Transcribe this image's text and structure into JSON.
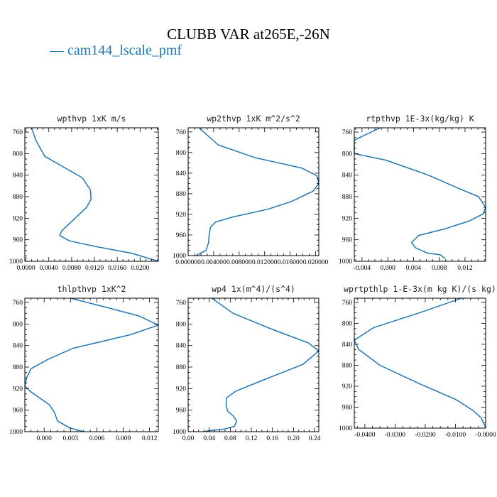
{
  "title": "CLUBB VAR at265E,-26N",
  "legend": {
    "label": "— cam144_lscale_pmf",
    "color": "#1f77b4"
  },
  "chart_data": [
    {
      "type": "line",
      "title": "wpthvp  1xK m/s",
      "xlim": [
        -0.0002,
        0.0232
      ],
      "ylim": [
        1000,
        752
      ],
      "xticks": [
        0.0,
        0.004,
        0.008,
        0.012,
        0.016,
        0.02
      ],
      "xticklabels": [
        "0.0000",
        "0.0040",
        "0.0080",
        "0.0120",
        "0.0160",
        "0.0200"
      ],
      "yticks": [
        760,
        800,
        840,
        880,
        920,
        960,
        1000
      ],
      "series": [
        {
          "color": "#1f77b4",
          "x": [
            0.001,
            0.0017,
            0.0033,
            0.0099,
            0.0113,
            0.0114,
            0.0106,
            0.0086,
            0.0063,
            0.0059,
            0.0076,
            0.0124,
            0.0185,
            0.0232
          ],
          "y": [
            752,
            775,
            805,
            845,
            868,
            885,
            900,
            920,
            943,
            952,
            962,
            973,
            985,
            1000
          ]
        }
      ]
    },
    {
      "type": "line",
      "title": "wp2thvp  1xK m^2/s^2",
      "xlim": [
        0.0,
        0.0205
      ],
      "ylim": [
        1000,
        752
      ],
      "xticks": [
        0.0,
        0.004,
        0.008,
        0.012,
        0.016,
        0.02
      ],
      "xticklabels": [
        "0.000000",
        "0.004000",
        "0.008000",
        "0.012000",
        "0.016000",
        "0.020000"
      ],
      "yticks": [
        760,
        800,
        840,
        880,
        920,
        960,
        1000
      ],
      "series": [
        {
          "color": "#1f77b4",
          "x": [
            0.0017,
            0.0047,
            0.0105,
            0.0178,
            0.0202,
            0.0205,
            0.0196,
            0.0162,
            0.0125,
            0.007,
            0.0043,
            0.0035,
            0.0033,
            0.0032,
            0.0028,
            0.0012
          ],
          "y": [
            752,
            785,
            810,
            830,
            845,
            860,
            875,
            895,
            910,
            925,
            935,
            945,
            960,
            975,
            990,
            1000
          ]
        }
      ]
    },
    {
      "type": "line",
      "title": "rtpthvp  1E-3x(kg/kg) K",
      "xlim": [
        -0.0052,
        0.0152
      ],
      "ylim": [
        1000,
        752
      ],
      "xticks": [
        -0.004,
        0.0,
        0.004,
        0.008,
        0.012
      ],
      "xticklabels": [
        "-0.004",
        "0.000",
        "0.004",
        "0.008",
        "0.012"
      ],
      "yticks": [
        760,
        800,
        840,
        880,
        920,
        960,
        1000
      ],
      "series": [
        {
          "color": "#1f77b4",
          "x": [
            -0.0012,
            -0.0052,
            -0.0052,
            -0.0003,
            0.0063,
            0.0111,
            0.0141,
            0.0152,
            0.0148,
            0.0127,
            0.0088,
            0.0048,
            0.0037,
            0.0043,
            0.0062,
            0.0082,
            0.0089
          ],
          "y": [
            752,
            775,
            800,
            812,
            840,
            865,
            880,
            900,
            912,
            925,
            940,
            952,
            965,
            975,
            985,
            988,
            995
          ]
        }
      ]
    },
    {
      "type": "line",
      "title": "thlpthvp  1xK^2",
      "xlim": [
        -0.0022,
        0.013
      ],
      "ylim": [
        1000,
        752
      ],
      "xticks": [
        0.0,
        0.003,
        0.006,
        0.009,
        0.012
      ],
      "xticklabels": [
        "0.000",
        "0.003",
        "0.006",
        "0.009",
        "0.012"
      ],
      "yticks": [
        760,
        800,
        840,
        880,
        920,
        960,
        1000
      ],
      "series": [
        {
          "color": "#1f77b4",
          "x": [
            0.003,
            0.0073,
            0.0108,
            0.013,
            0.0098,
            0.0033,
            0.0005,
            -0.0015,
            -0.002,
            -0.0022,
            -0.0016,
            0.0006,
            0.0012,
            0.0015,
            0.0029,
            0.0045
          ],
          "y": [
            752,
            770,
            785,
            802,
            820,
            845,
            865,
            883,
            900,
            915,
            925,
            950,
            965,
            980,
            993,
            1000
          ]
        }
      ]
    },
    {
      "type": "line",
      "title": "wp4  1x(m^4)/(s^4)",
      "xlim": [
        0.0,
        0.248
      ],
      "ylim": [
        1000,
        752
      ],
      "xticks": [
        0.0,
        0.04,
        0.08,
        0.12,
        0.16,
        0.2,
        0.24
      ],
      "xticklabels": [
        "0.00",
        "0.04",
        "0.08",
        "0.12",
        "0.16",
        "0.20",
        "0.24"
      ],
      "yticks": [
        760,
        800,
        840,
        880,
        920,
        960,
        1000
      ],
      "series": [
        {
          "color": "#1f77b4",
          "x": [
            0.045,
            0.085,
            0.16,
            0.228,
            0.248,
            0.218,
            0.14,
            0.09,
            0.073,
            0.072,
            0.075,
            0.085,
            0.092,
            0.088,
            0.07,
            0.04,
            0.03
          ],
          "y": [
            752,
            780,
            810,
            835,
            850,
            875,
            905,
            925,
            937,
            950,
            962,
            970,
            980,
            990,
            995,
            998,
            1000
          ]
        }
      ]
    },
    {
      "type": "line",
      "title": "wprtpthlp  1-E-3x(m kg K)/(s kg)",
      "xlim": [
        -0.0435,
        0.0
      ],
      "ylim": [
        1000,
        752
      ],
      "xticks": [
        -0.04,
        -0.03,
        -0.02,
        -0.01,
        0.0
      ],
      "xticklabels": [
        "-0.0400",
        "-0.0300",
        "-0.0200",
        "-0.0100",
        "-0.0000"
      ],
      "yticks": [
        760,
        800,
        840,
        880,
        920,
        960,
        1000
      ],
      "series": [
        {
          "color": "#1f77b4",
          "x": [
            -0.008,
            -0.022,
            -0.037,
            -0.0435,
            -0.042,
            -0.035,
            -0.022,
            -0.01,
            -0.0045,
            -0.0015,
            -0.0003,
            0.0
          ],
          "y": [
            752,
            780,
            808,
            832,
            850,
            880,
            915,
            945,
            965,
            980,
            995,
            1000
          ]
        }
      ]
    }
  ]
}
